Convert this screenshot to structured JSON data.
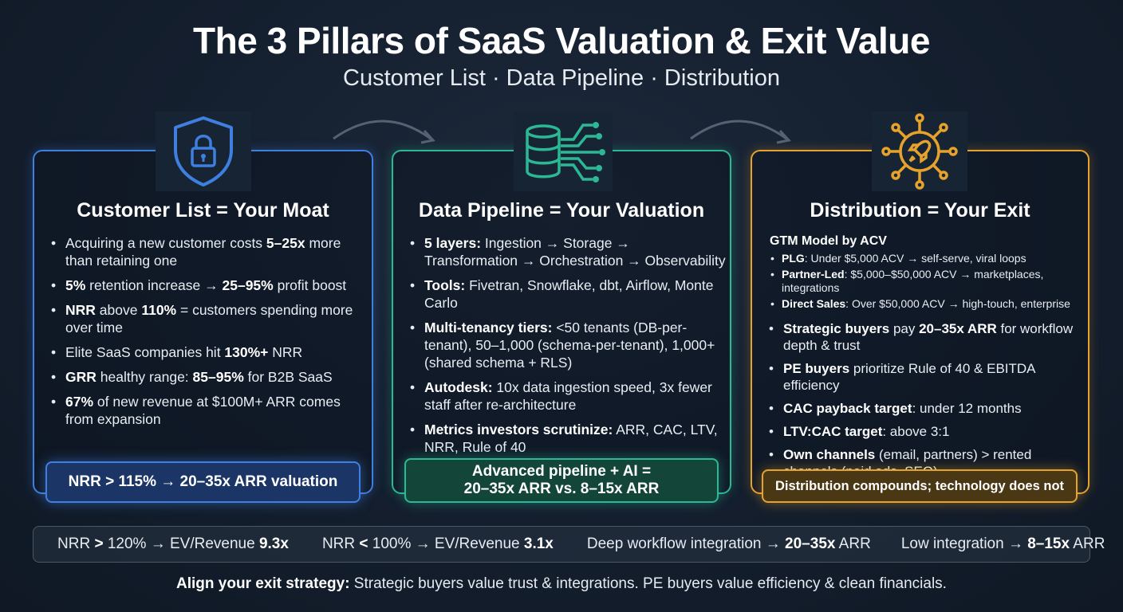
{
  "header": {
    "title": "The 3 Pillars of SaaS Valuation & Exit Value",
    "subtitle": "Customer List · Data Pipeline · Distribution"
  },
  "colors": {
    "blue": "#3f7fe0",
    "green": "#2bb894",
    "orange": "#e6a22b"
  },
  "pillars": [
    {
      "icon": "shield-lock-icon",
      "title": "Customer List = Your Moat",
      "bullets": [
        {
          "pre": "Acquiring a new customer costs ",
          "bold": "5–25x",
          "post": " more than retaining one"
        },
        {
          "pre": "",
          "bold": "5%",
          "post": " retention increase → ",
          "bold2": "25–95%",
          "post2": " profit boost"
        },
        {
          "pre": "",
          "bold": "NRR",
          "post": " above ",
          "bold2": "110%",
          "post2": " = customers spending more over time"
        },
        {
          "pre": "Elite SaaS companies hit ",
          "bold": "130%+",
          "post": " NRR"
        },
        {
          "pre": "",
          "bold": "GRR",
          "post": " healthy range: ",
          "bold2": "85–95%",
          "post2": " for B2B SaaS"
        },
        {
          "pre": "",
          "bold": "67%",
          "post": " of new revenue at $100M+ ARR comes from expansion"
        }
      ],
      "footer": "NRR > 115% → 20–35x ARR valuation"
    },
    {
      "icon": "database-network-icon",
      "title": "Data Pipeline = Your Valuation",
      "bullets": [
        {
          "pre": "",
          "bold": "5 layers:",
          "post": " Ingestion → Storage → Transformation → Orchestration → Observability"
        },
        {
          "pre": "",
          "bold": "Tools:",
          "post": " Fivetran, Snowflake, dbt, Airflow, Monte Carlo"
        },
        {
          "pre": "",
          "bold": "Multi-tenancy tiers:",
          "post": " <50 tenants (DB-per-tenant), 50–1,000 (schema-per-tenant), 1,000+ (shared schema + RLS)"
        },
        {
          "pre": "",
          "bold": "Autodesk:",
          "post": " 10x data ingestion speed, 3x fewer staff after re-architecture"
        },
        {
          "pre": "",
          "bold": "Metrics investors scrutinize:",
          "post": " ARR, CAC, LTV, NRR, Rule of 40"
        }
      ],
      "footer_line1": "Advanced pipeline + AI =",
      "footer_line2": "20–35x ARR vs. 8–15x ARR"
    },
    {
      "icon": "rocket-network-icon",
      "title": "Distribution = Your Exit",
      "gtm_heading": "GTM Model by ACV",
      "gtm": [
        {
          "bold": "PLG",
          "post": ": Under $5,000 ACV → self-serve, viral loops"
        },
        {
          "bold": "Partner-Led",
          "post": ": $5,000–$50,000 ACV → marketplaces, integrations"
        },
        {
          "bold": "Direct Sales",
          "post": ": Over $50,000 ACV → high-touch, enterprise"
        }
      ],
      "bullets": [
        {
          "pre": "",
          "bold": "Strategic buyers",
          "post": " pay ",
          "bold2": "20–35x ARR",
          "post2": " for workflow depth & trust"
        },
        {
          "pre": "",
          "bold": "PE buyers",
          "post": " prioritize Rule of 40 & EBITDA efficiency"
        },
        {
          "pre": "",
          "bold": "CAC payback target",
          "post": ": under 12 months"
        },
        {
          "pre": "",
          "bold": "LTV:CAC target",
          "post": ": above 3:1"
        },
        {
          "pre": "",
          "bold": "Own channels",
          "post": " (email, partners) > rented channels (paid ads, SEO)"
        }
      ],
      "footer": "Distribution compounds; technology does not"
    }
  ],
  "metrics": [
    {
      "pre": "NRR ",
      "bold": ">",
      "mid": " 120% → EV/Revenue ",
      "bold2": "9.3x"
    },
    {
      "pre": "NRR ",
      "bold": "<",
      "mid": " 100% → EV/Revenue ",
      "bold2": "3.1x"
    },
    {
      "pre": "Deep workflow integration → ",
      "bold": "20–35x",
      "mid": " ARR",
      "bold2": ""
    },
    {
      "pre": "Low integration → ",
      "bold": "8–15x",
      "mid": " ARR",
      "bold2": ""
    }
  ],
  "bottom": {
    "bold": "Align your exit strategy:",
    "text": " Strategic buyers value trust & integrations. PE buyers value efficiency & clean financials."
  }
}
